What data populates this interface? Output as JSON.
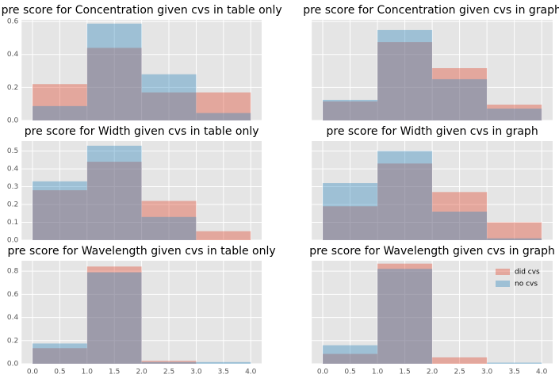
{
  "chart_data": [
    {
      "type": "histogram",
      "title": "pre score for Concentration given cvs in table only",
      "bins": [
        0,
        1,
        2,
        3,
        4
      ],
      "series": [
        {
          "color": "#E24A33",
          "values": [
            0.22,
            0.44,
            0.17,
            0.17
          ]
        },
        {
          "color": "#348ABD",
          "values": [
            0.087,
            0.587,
            0.28,
            0.045
          ]
        }
      ],
      "alpha": 0.4,
      "grid": true,
      "xlim": [
        -0.2,
        4.2
      ],
      "xticks": [
        0,
        0.5,
        1,
        1.5,
        2,
        2.5,
        3,
        3.5,
        4
      ],
      "ylim": [
        0,
        0.61
      ],
      "yticks": [
        {
          "value": 0,
          "label": "0.0"
        },
        {
          "value": 0.2,
          "label": "0.2"
        },
        {
          "value": 0.4,
          "label": "0.4"
        },
        {
          "value": 0.6,
          "label": "0.6"
        }
      ]
    },
    {
      "type": "histogram",
      "title": "pre score for Concentration given cvs in graph",
      "bins": [
        0,
        1,
        2,
        3,
        4
      ],
      "series": [
        {
          "color": "#E24A33",
          "values": [
            0.115,
            0.475,
            0.317,
            0.096
          ]
        },
        {
          "color": "#348ABD",
          "values": [
            0.125,
            0.548,
            0.25,
            0.072
          ]
        }
      ],
      "alpha": 0.4,
      "grid": true,
      "xlim": [
        -0.2,
        4.2
      ],
      "xticks": [
        0,
        0.5,
        1,
        1.5,
        2,
        2.5,
        3,
        3.5,
        4
      ],
      "ylim": [
        0,
        0.61
      ],
      "yticks": [
        0,
        0.2,
        0.4,
        0.6
      ]
    },
    {
      "type": "histogram",
      "title": "pre score for Width given cvs in table only",
      "bins": [
        0,
        1,
        2,
        3,
        4
      ],
      "series": [
        {
          "color": "#E24A33",
          "values": [
            0.28,
            0.44,
            0.22,
            0.05
          ]
        },
        {
          "color": "#348ABD",
          "values": [
            0.33,
            0.53,
            0.13,
            0
          ]
        }
      ],
      "alpha": 0.4,
      "grid": true,
      "xlim": [
        -0.2,
        4.2
      ],
      "xticks": [
        0,
        0.5,
        1,
        1.5,
        2,
        2.5,
        3,
        3.5,
        4
      ],
      "ylim": [
        0,
        0.556
      ],
      "yticks": [
        {
          "value": 0,
          "label": "0.0"
        },
        0.1,
        0.2,
        0.3,
        0.4,
        0.5
      ]
    },
    {
      "type": "histogram",
      "title": "pre score for Width given cvs in graph",
      "bins": [
        0,
        1,
        2,
        3,
        4
      ],
      "series": [
        {
          "color": "#E24A33",
          "values": [
            0.19,
            0.43,
            0.27,
            0.1
          ]
        },
        {
          "color": "#348ABD",
          "values": [
            0.32,
            0.5,
            0.16,
            0.01
          ]
        }
      ],
      "alpha": 0.4,
      "grid": true,
      "xlim": [
        -0.2,
        4.2
      ],
      "xticks": [
        0,
        0.5,
        1,
        1.5,
        2,
        2.5,
        3,
        3.5,
        4
      ],
      "ylim": [
        0,
        0.556
      ],
      "yticks": [
        0,
        0.1,
        0.2,
        0.3,
        0.4,
        0.5
      ]
    },
    {
      "type": "histogram",
      "title": "pre score for Wavelength given cvs in table only",
      "bins": [
        0,
        1,
        2,
        3,
        4
      ],
      "series": [
        {
          "color": "#E24A33",
          "values": [
            0.135,
            0.84,
            0.025,
            0
          ]
        },
        {
          "color": "#348ABD",
          "values": [
            0.175,
            0.79,
            0.015,
            0.015
          ]
        }
      ],
      "alpha": 0.4,
      "grid": true,
      "xlim": [
        -0.2,
        4.2
      ],
      "xticks": [
        {
          "value": 0,
          "label": "0.0"
        },
        0.5,
        {
          "value": 1,
          "label": "1.0"
        },
        1.5,
        {
          "value": 2,
          "label": "2.0"
        },
        2.5,
        {
          "value": 3,
          "label": "3.0"
        },
        3.5,
        {
          "value": 4,
          "label": "4.0"
        }
      ],
      "ylim": [
        0,
        0.89
      ],
      "yticks": [
        {
          "value": 0,
          "label": "0.0"
        },
        0.2,
        0.4,
        0.6,
        0.8
      ]
    },
    {
      "type": "histogram",
      "title": "pre score for Wavelength given cvs in graph",
      "bins": [
        0,
        1,
        2,
        3,
        4
      ],
      "series": [
        {
          "name": "did cvs",
          "color": "#E24A33",
          "values": [
            0.085,
            0.865,
            0.055,
            0
          ]
        },
        {
          "name": "no cvs",
          "color": "#348ABD",
          "values": [
            0.16,
            0.82,
            0,
            0.01
          ]
        }
      ],
      "alpha": 0.4,
      "grid": true,
      "legend": "upper right",
      "xlim": [
        -0.2,
        4.2
      ],
      "xticks": [
        {
          "value": 0,
          "label": "0.0"
        },
        0.5,
        {
          "value": 1,
          "label": "1.0"
        },
        1.5,
        {
          "value": 2,
          "label": "2.0"
        },
        2.5,
        {
          "value": 3,
          "label": "3.0"
        },
        3.5,
        {
          "value": 4,
          "label": "4.0"
        }
      ],
      "ylim": [
        0,
        0.89
      ],
      "yticks": [
        0,
        0.2,
        0.4,
        0.6,
        0.8
      ]
    }
  ]
}
